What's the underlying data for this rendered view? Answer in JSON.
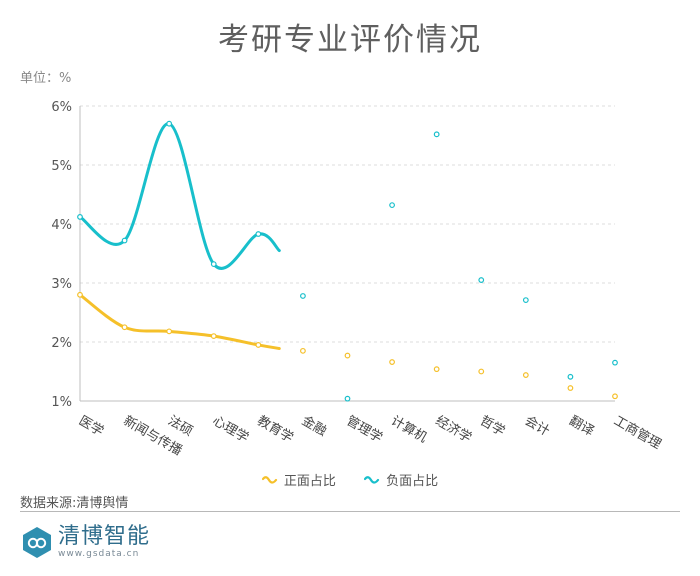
{
  "title": "考研专业评价情况",
  "unit_label": "单位：%",
  "source": "数据来源:清博舆情",
  "brand": {
    "name": "清博智能",
    "url": "www.gsdata.cn"
  },
  "colors": {
    "positive": "#F5C02A",
    "negative": "#18BFCB",
    "grid": "#dddddd",
    "axis": "#bfbfbf"
  },
  "chart_data": {
    "type": "line",
    "categories": [
      "医学",
      "新闻与传播",
      "法硕",
      "心理学",
      "教育学",
      "金融",
      "管理学",
      "计算机",
      "经济学",
      "哲学",
      "会计",
      "翻译",
      "工商管理"
    ],
    "ylim": [
      1,
      6
    ],
    "yticks": [
      "1%",
      "2%",
      "3%",
      "4%",
      "5%",
      "6%"
    ],
    "ytick_values": [
      1,
      2,
      3,
      4,
      5,
      6
    ],
    "legend_position": "bottom",
    "series": [
      {
        "name": "正面占比",
        "color": "#F5C02A",
        "values": [
          2.8,
          2.25,
          2.18,
          2.1,
          1.95,
          1.85,
          1.77,
          1.66,
          1.54,
          1.5,
          1.44,
          1.22,
          1.08
        ]
      },
      {
        "name": "负面占比",
        "color": "#18BFCB",
        "values": [
          4.12,
          3.72,
          5.7,
          3.32,
          3.83,
          2.78,
          1.04,
          4.32,
          5.52,
          3.05,
          2.71,
          1.41,
          1.65
        ]
      }
    ]
  }
}
